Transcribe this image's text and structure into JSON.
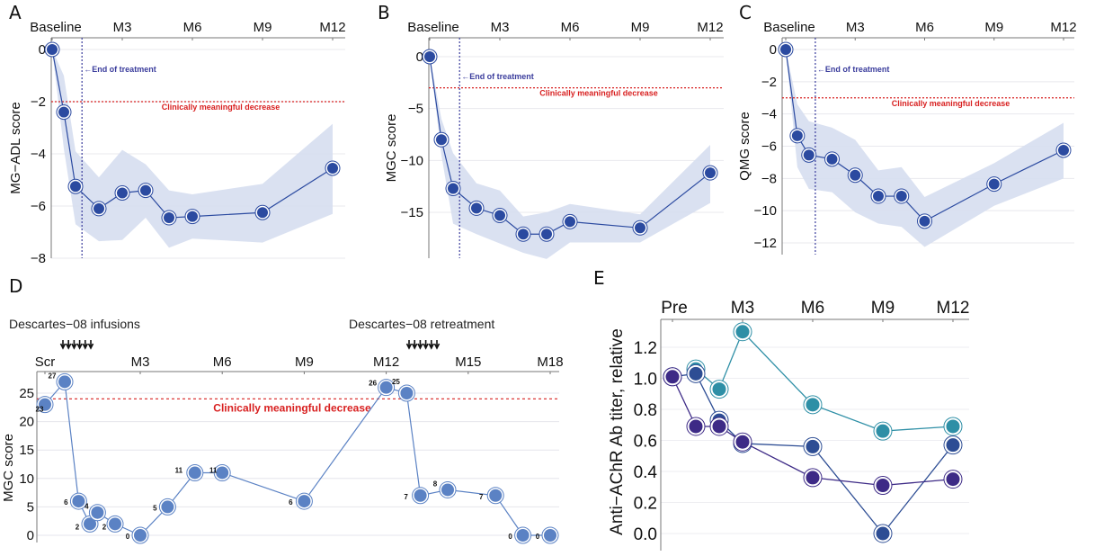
{
  "colors": {
    "series_dark_blue": "#2b4aa0",
    "band": "#d6def0",
    "eot_line": "#3a3c9c",
    "threshold": "#d82020",
    "d_series": "#5b82c4",
    "e_teal": "#2e8fa6",
    "e_blue": "#2d4d94",
    "e_purple": "#3d2a86"
  },
  "chart_data": [
    {
      "panel": "A",
      "type": "line",
      "title": "",
      "ylabel": "MG−ADL score",
      "xlabel": "",
      "x_tick_labels": [
        "Baseline",
        "M3",
        "M6",
        "M9",
        "M12"
      ],
      "x_tick_months": [
        0,
        3,
        6,
        9,
        12
      ],
      "ylim": [
        -8,
        0.3
      ],
      "y_ticks": [
        0,
        -2,
        -4,
        -6,
        -8
      ],
      "y_tick_labels": [
        "0",
        "−2",
        "−4",
        "−6",
        "−8"
      ],
      "grid": true,
      "end_of_treatment_month": 1.2,
      "end_of_treatment_label": "←End of treatment",
      "threshold": -2,
      "threshold_label": "Clinically meaningful decrease",
      "series": [
        {
          "name": "mean",
          "x": [
            0,
            0.5,
            1,
            2,
            3,
            4,
            5,
            6,
            9,
            13
          ],
          "values": [
            0,
            -2.4,
            -5.25,
            -6.1,
            -5.5,
            -5.4,
            -6.45,
            -6.4,
            -6.25,
            -4.55
          ],
          "lower": [
            0,
            -3.8,
            -6.7,
            -7.35,
            -7.3,
            -6.45,
            -7.6,
            -7.25,
            -7.4,
            -6.3
          ],
          "upper": [
            0,
            -1.0,
            -3.9,
            -4.9,
            -3.85,
            -4.4,
            -5.4,
            -5.55,
            -5.15,
            -2.85
          ]
        }
      ]
    },
    {
      "panel": "B",
      "type": "line",
      "title": "",
      "ylabel": "MGC score",
      "xlabel": "",
      "x_tick_labels": [
        "Baseline",
        "M3",
        "M6",
        "M9",
        "M12"
      ],
      "x_tick_months": [
        0,
        3,
        6,
        9,
        12
      ],
      "ylim": [
        -19,
        1.2
      ],
      "y_ticks": [
        0,
        -5,
        -10,
        -15
      ],
      "y_tick_labels": [
        "0",
        "−5",
        "−10",
        "−15"
      ],
      "grid": true,
      "end_of_treatment_month": 1.2,
      "end_of_treatment_label": "←End of treatment",
      "threshold": -3,
      "threshold_label": "Clinically meaningful decrease",
      "series": [
        {
          "name": "mean",
          "x": [
            0,
            0.5,
            1,
            2,
            3,
            4,
            5,
            6,
            9,
            13
          ],
          "values": [
            0,
            -8.0,
            -12.7,
            -14.6,
            -15.3,
            -17.1,
            -17.1,
            -15.9,
            -16.5,
            -11.2
          ],
          "lower": [
            0,
            -9.5,
            -16.1,
            -17.1,
            -18.0,
            -18.9,
            -19.5,
            -17.9,
            -17.9,
            -14.1
          ],
          "upper": [
            0,
            -6.0,
            -9.3,
            -12.2,
            -12.9,
            -15.4,
            -15.0,
            -14.2,
            -15.2,
            -8.5
          ]
        }
      ]
    },
    {
      "panel": "C",
      "type": "line",
      "title": "",
      "ylabel": "QMG score",
      "xlabel": "",
      "x_tick_labels": [
        "Baseline",
        "M3",
        "M6",
        "M9",
        "M12"
      ],
      "x_tick_months": [
        0,
        3,
        6,
        9,
        12
      ],
      "ylim": [
        -12.7,
        0.8
      ],
      "y_ticks": [
        0,
        -2,
        -4,
        -6,
        -8,
        -10,
        -12
      ],
      "y_tick_labels": [
        "0",
        "−2",
        "−4",
        "−6",
        "−8",
        "−10",
        "−12"
      ],
      "grid": true,
      "end_of_treatment_month": 1.2,
      "end_of_treatment_label": "←End of treatment",
      "threshold": -3,
      "threshold_label": "Clinically meaningful decrease",
      "series": [
        {
          "name": "mean",
          "x": [
            0,
            0.5,
            1,
            2,
            3,
            4,
            5,
            6,
            9,
            13
          ],
          "values": [
            0,
            -5.35,
            -6.55,
            -6.8,
            -7.8,
            -9.1,
            -9.1,
            -10.65,
            -8.35,
            -6.25
          ],
          "lower": [
            0,
            -7.3,
            -8.65,
            -8.85,
            -10.1,
            -10.8,
            -11.0,
            -12.25,
            -9.7,
            -8.0
          ],
          "upper": [
            0,
            -3.4,
            -4.45,
            -4.85,
            -5.6,
            -7.5,
            -7.3,
            -9.15,
            -7.05,
            -4.55
          ]
        }
      ]
    },
    {
      "panel": "D",
      "type": "line",
      "title": "",
      "ylabel": "MGC score",
      "xlabel": "",
      "x_tick_labels": [
        "Scr",
        "M3",
        "M6",
        "M9",
        "M12",
        "M15",
        "M18"
      ],
      "x_tick_months": [
        -1,
        3,
        6,
        9,
        12,
        15,
        18
      ],
      "ylim": [
        -1,
        28.5
      ],
      "y_ticks": [
        0,
        5,
        10,
        15,
        20,
        25
      ],
      "y_tick_labels": [
        "0",
        "5",
        "10",
        "15",
        "20",
        "25"
      ],
      "grid": true,
      "threshold": 24,
      "threshold_label": "Clinically meaningful decrease",
      "annotations": [
        {
          "text": "Descartes−08 infusions",
          "arrows": 6
        },
        {
          "text": "Descartes−08 retreatment",
          "arrows": 6
        }
      ],
      "series": [
        {
          "name": "patient",
          "x": [
            -1,
            0,
            0.55,
            1.0,
            1.3,
            2.0,
            3.0,
            4.0,
            5.0,
            6.0,
            9.0,
            12.0,
            12.75,
            13.25,
            14.25,
            16.0,
            17.0,
            18.0
          ],
          "values": [
            23,
            27,
            6,
            2,
            4,
            2,
            0,
            5,
            11,
            11,
            6,
            26,
            25,
            7,
            8,
            7,
            0,
            0
          ],
          "labels": [
            "23",
            "27",
            "6",
            "2",
            "4",
            "2",
            "0",
            "5",
            "11",
            "11",
            "6",
            "26",
            "25",
            "7",
            "8",
            "7",
            "0",
            "0"
          ]
        }
      ]
    },
    {
      "panel": "E",
      "type": "line",
      "title": "",
      "ylabel": "Anti−AChR Ab titer, relative",
      "xlabel": "",
      "x_tick_labels": [
        "Pre",
        "M3",
        "M6",
        "M9",
        "M12"
      ],
      "x_tick_months": [
        0,
        3,
        6,
        9,
        12
      ],
      "ylim": [
        -0.1,
        1.4
      ],
      "y_ticks": [
        0.0,
        0.2,
        0.4,
        0.6,
        0.8,
        1.0,
        1.2
      ],
      "y_tick_labels": [
        "0.0",
        "0.2",
        "0.4",
        "0.6",
        "0.8",
        "1.0",
        "1.2"
      ],
      "grid": true,
      "series": [
        {
          "name": "patient-teal",
          "color_key": "e_teal",
          "x": [
            1,
            2,
            3,
            6,
            9,
            12
          ],
          "values": [
            1.06,
            0.93,
            1.3,
            0.83,
            0.66,
            0.69
          ]
        },
        {
          "name": "patient-blue",
          "color_key": "e_blue",
          "x": [
            0,
            1,
            2,
            3,
            6,
            9,
            12
          ],
          "values": [
            1.01,
            1.03,
            0.73,
            0.58,
            0.56,
            0.0,
            0.57
          ]
        },
        {
          "name": "patient-purple",
          "color_key": "e_purple",
          "x": [
            0,
            1,
            2,
            3,
            6,
            9,
            12
          ],
          "values": [
            1.01,
            0.69,
            0.69,
            0.59,
            0.36,
            0.31,
            0.35
          ]
        }
      ]
    }
  ]
}
